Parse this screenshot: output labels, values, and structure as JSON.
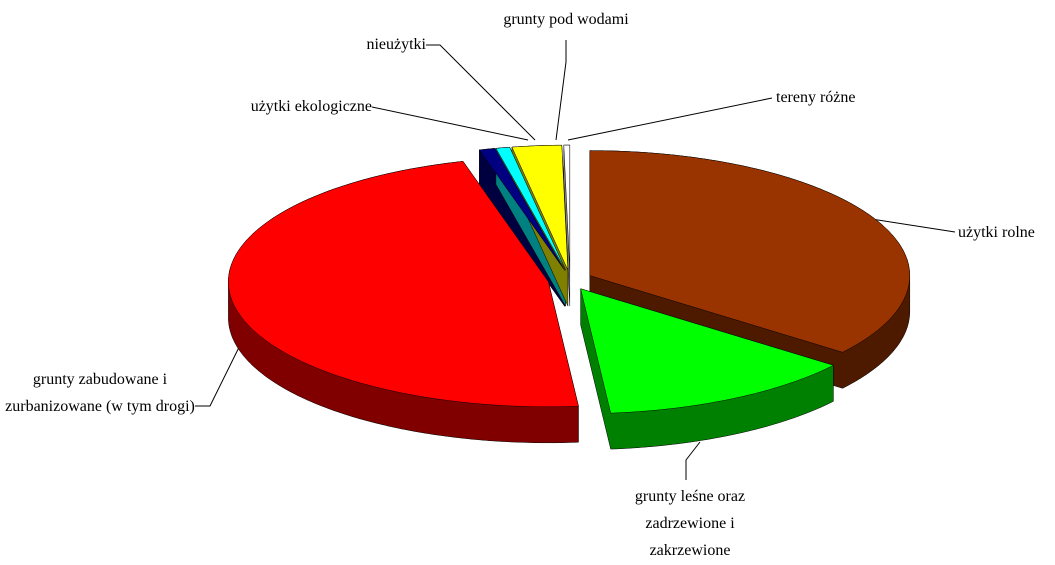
{
  "chart_data": {
    "type": "pie",
    "categories": [
      "użytki rolne",
      "grunty leśne oraz zadrzewione i zakrzewione",
      "grunty zabudowane i zurbanizowane (w tym drogi)",
      "użytki ekologiczne",
      "nieużytki",
      "grunty pod wodami",
      "tereny różne"
    ],
    "values": [
      35.5,
      13,
      47.2,
      0.8,
      0.7,
      2.5,
      0.3
    ],
    "colors": [
      "#993300",
      "#00ff00",
      "#ff0000",
      "#000080",
      "#00ffff",
      "#ffff00",
      "#ffffff"
    ]
  }
}
